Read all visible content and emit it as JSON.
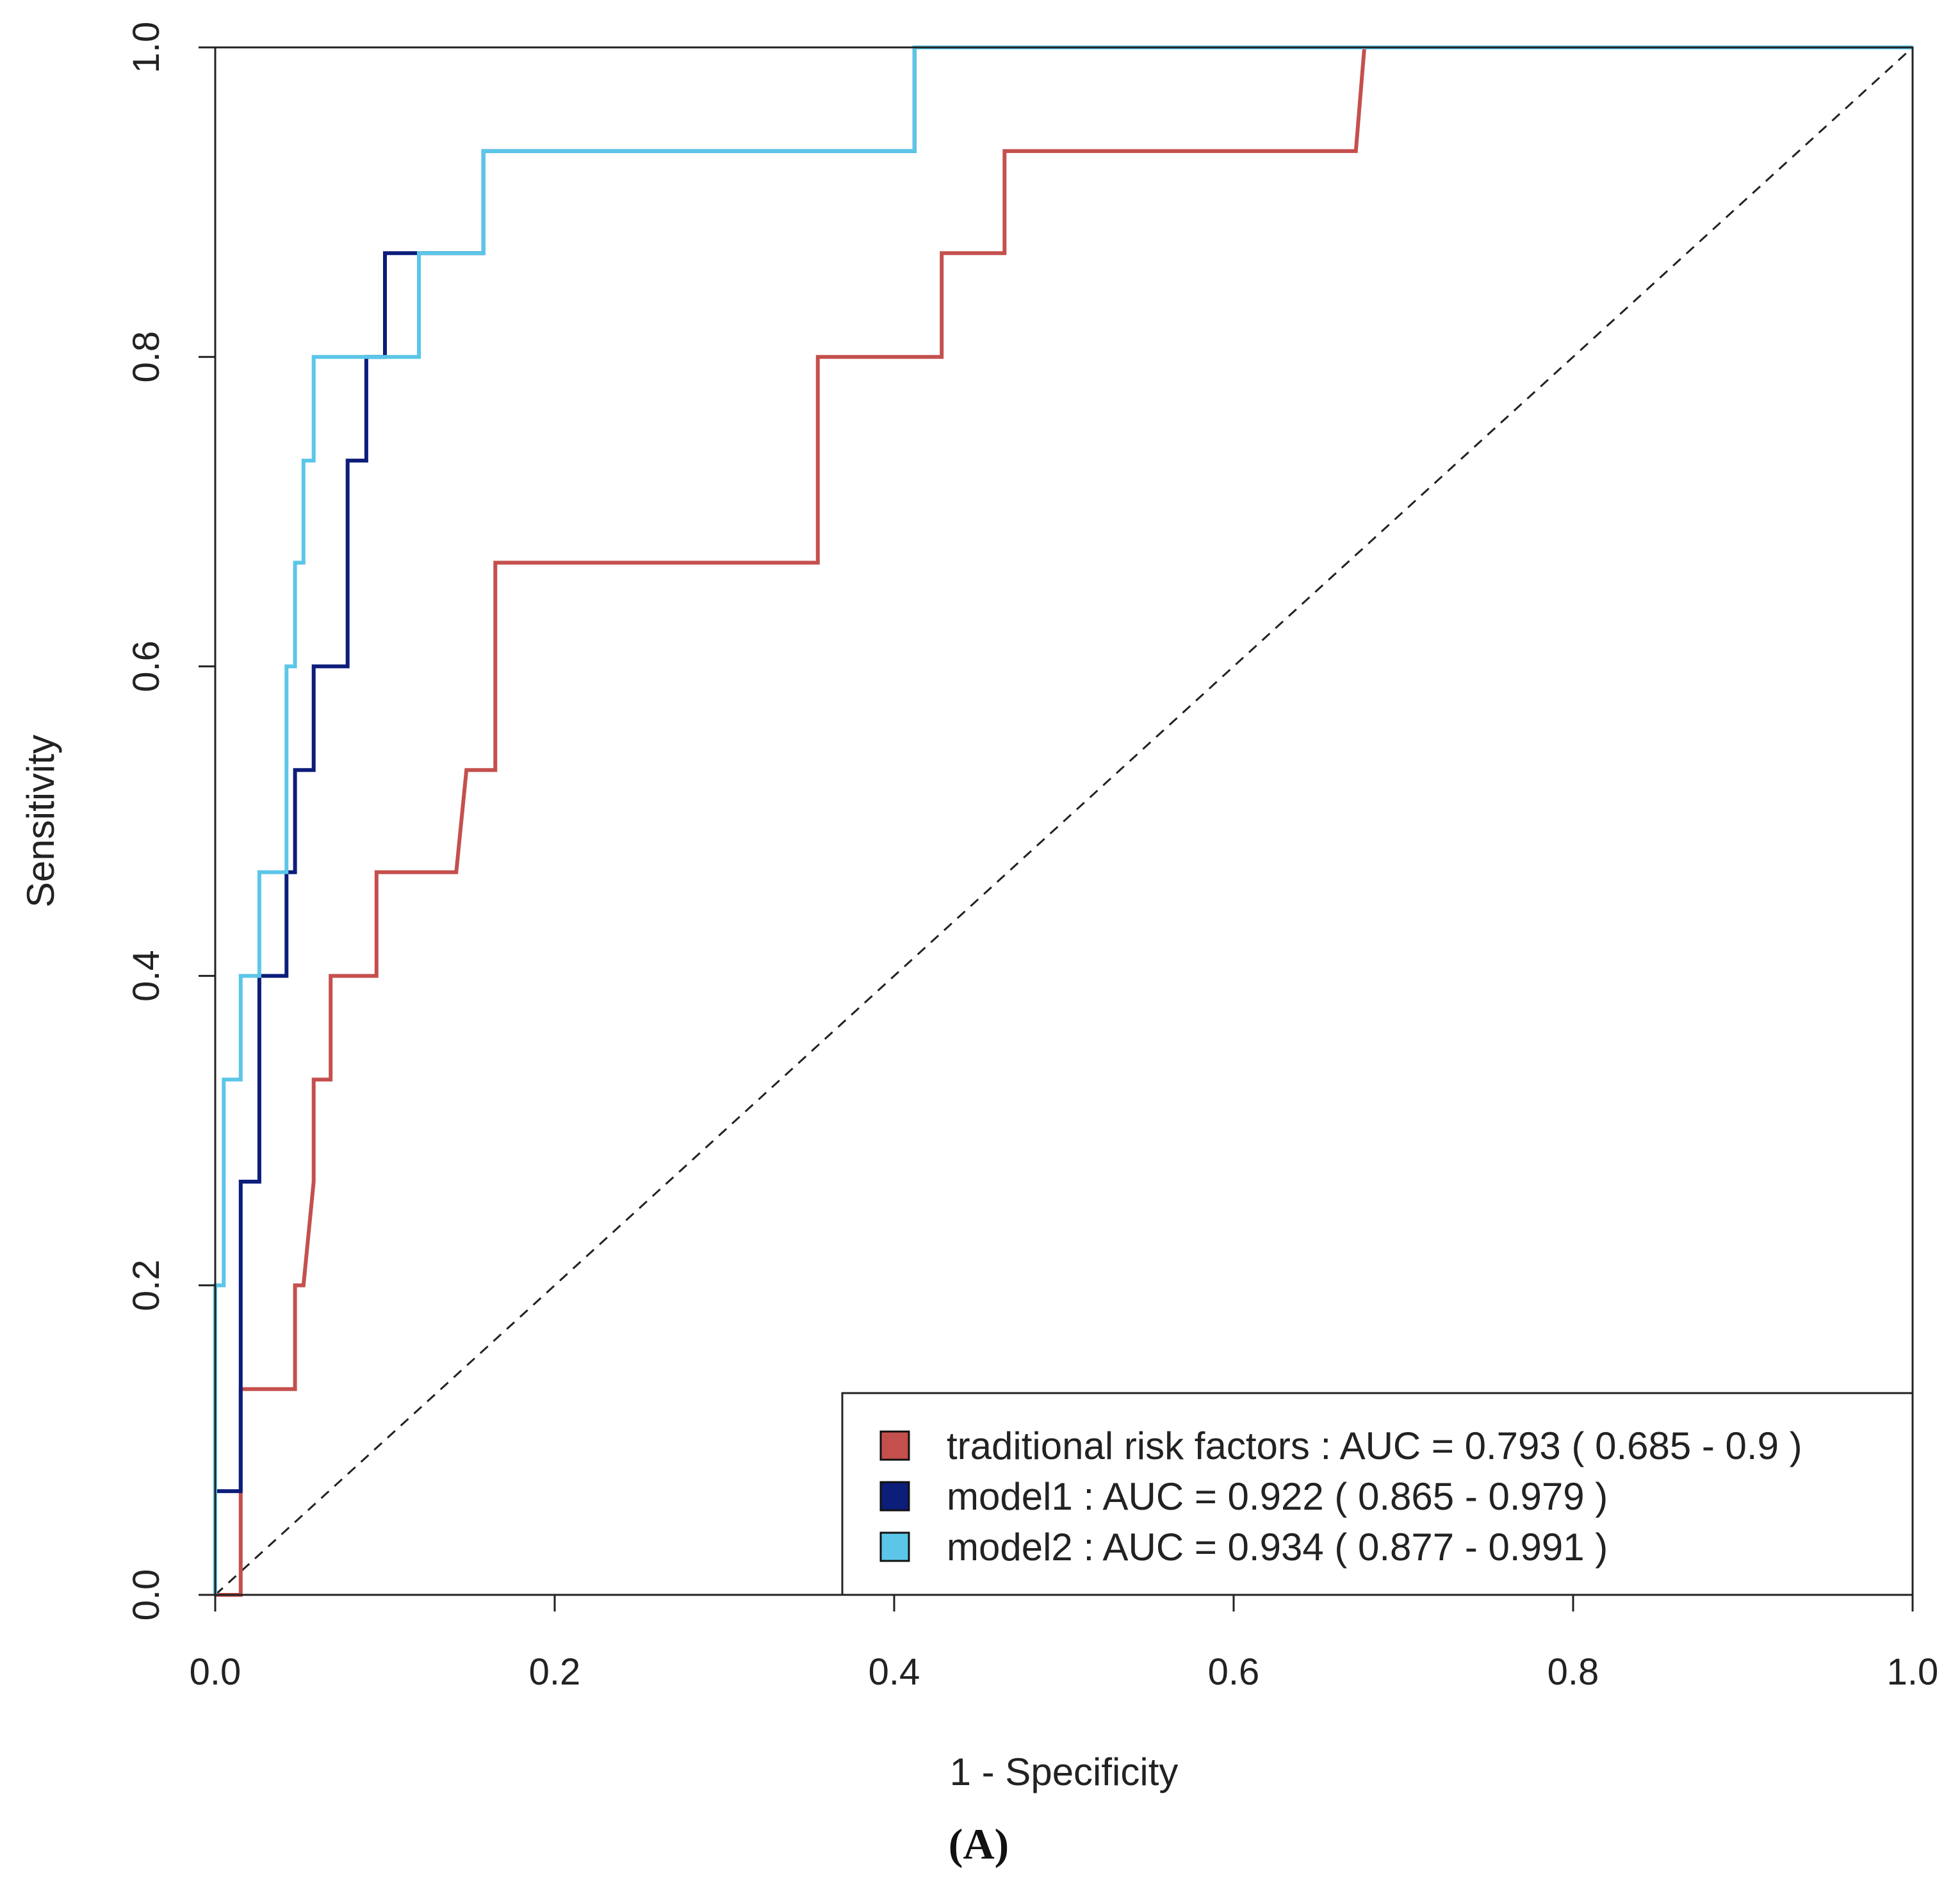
{
  "panel_label": "(A)",
  "chart_data": {
    "type": "line",
    "title": "",
    "xlabel": "1 - Specificity",
    "ylabel": "Sensitivity",
    "xlim": [
      0,
      1
    ],
    "ylim": [
      0,
      1
    ],
    "xticks": [
      0.0,
      0.2,
      0.4,
      0.6,
      0.8,
      1.0
    ],
    "yticks": [
      0.0,
      0.2,
      0.4,
      0.6,
      0.8,
      1.0
    ],
    "xtick_labels": [
      "0.0",
      "0.2",
      "0.4",
      "0.6",
      "0.8",
      "1.0"
    ],
    "ytick_labels": [
      "0.0",
      "0.2",
      "0.4",
      "0.6",
      "0.8",
      "1.0"
    ],
    "grid": false,
    "legend_position": "bottom-right",
    "reference_line": {
      "x": [
        0,
        1
      ],
      "y": [
        0,
        1
      ],
      "style": "dashed",
      "color": "#222222"
    },
    "series": [
      {
        "name": "traditional risk factors",
        "legend_label": "traditional risk factors : AUC = 0.793  ( 0.685 - 0.9 )",
        "auc": 0.793,
        "ci": [
          0.685,
          0.9
        ],
        "color": "#c4504e",
        "x": [
          0.0,
          0.015,
          0.015,
          0.047,
          0.047,
          0.052,
          0.058,
          0.058,
          0.068,
          0.068,
          0.095,
          0.095,
          0.142,
          0.148,
          0.162,
          0.165,
          0.165,
          0.355,
          0.355,
          0.428,
          0.428,
          0.465,
          0.465,
          0.672,
          0.677,
          1.0
        ],
        "y": [
          0.0,
          0.0,
          0.133,
          0.133,
          0.2,
          0.2,
          0.267,
          0.333,
          0.333,
          0.4,
          0.4,
          0.467,
          0.467,
          0.533,
          0.533,
          0.533,
          0.667,
          0.667,
          0.8,
          0.8,
          0.867,
          0.867,
          0.933,
          0.933,
          1.0,
          1.0
        ]
      },
      {
        "name": "model1",
        "legend_label": "model1 : AUC = 0.922  ( 0.865 - 0.979 )",
        "auc": 0.922,
        "ci": [
          0.865,
          0.979
        ],
        "color": "#0c1d7a",
        "x": [
          0.0,
          0.0,
          0.015,
          0.015,
          0.026,
          0.026,
          0.042,
          0.042,
          0.047,
          0.047,
          0.058,
          0.058,
          0.078,
          0.078,
          0.089,
          0.089,
          0.1,
          0.1,
          0.12,
          0.12,
          0.158,
          0.158,
          0.412,
          0.412,
          1.0
        ],
        "y": [
          0.0,
          0.067,
          0.067,
          0.267,
          0.267,
          0.4,
          0.4,
          0.467,
          0.467,
          0.533,
          0.533,
          0.6,
          0.6,
          0.733,
          0.733,
          0.8,
          0.8,
          0.867,
          0.867,
          0.867,
          0.867,
          0.933,
          0.933,
          1.0,
          1.0
        ]
      },
      {
        "name": "model2",
        "legend_label": "model2 : AUC = 0.934  ( 0.877 - 0.991 )",
        "auc": 0.934,
        "ci": [
          0.877,
          0.991
        ],
        "color": "#5bc6e8",
        "x": [
          0.0,
          0.0,
          0.005,
          0.005,
          0.015,
          0.015,
          0.026,
          0.026,
          0.042,
          0.042,
          0.047,
          0.047,
          0.052,
          0.052,
          0.058,
          0.058,
          0.12,
          0.12,
          0.158,
          0.158,
          0.412,
          0.412,
          1.0
        ],
        "y": [
          0.0,
          0.2,
          0.2,
          0.333,
          0.333,
          0.4,
          0.4,
          0.467,
          0.467,
          0.6,
          0.6,
          0.667,
          0.667,
          0.733,
          0.733,
          0.8,
          0.8,
          0.867,
          0.867,
          0.933,
          0.933,
          1.0,
          1.0
        ]
      }
    ]
  }
}
